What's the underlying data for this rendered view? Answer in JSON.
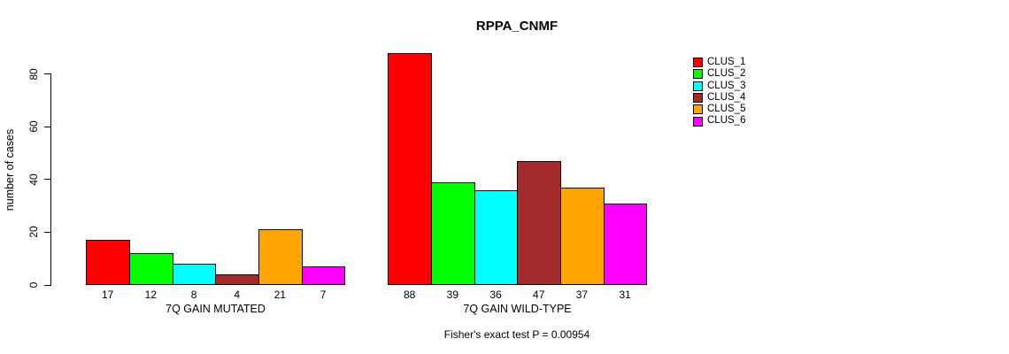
{
  "title": "RPPA_CNMF",
  "chart_data": {
    "type": "bar",
    "title": "RPPA_CNMF",
    "xlabel": "",
    "ylabel": "number of cases",
    "ylim": [
      0,
      88
    ],
    "yticks": [
      0,
      20,
      40,
      60,
      80
    ],
    "grid": false,
    "legend_position": "right",
    "value_labels": true,
    "categories": [
      "7Q GAIN MUTATED",
      "7Q GAIN WILD-TYPE"
    ],
    "series": [
      {
        "name": "CLUS_1",
        "color": "#FF0000",
        "values": [
          17,
          88
        ]
      },
      {
        "name": "CLUS_2",
        "color": "#00FF00",
        "values": [
          12,
          39
        ]
      },
      {
        "name": "CLUS_3",
        "color": "#00FFFF",
        "values": [
          8,
          36
        ]
      },
      {
        "name": "CLUS_4",
        "color": "#A52A2A",
        "values": [
          4,
          47
        ]
      },
      {
        "name": "CLUS_5",
        "color": "#FFA500",
        "values": [
          21,
          37
        ]
      },
      {
        "name": "CLUS_6",
        "color": "#FF00FF",
        "values": [
          7,
          31
        ]
      }
    ],
    "annotation": "Fisher's exact test P = 0.00954"
  }
}
